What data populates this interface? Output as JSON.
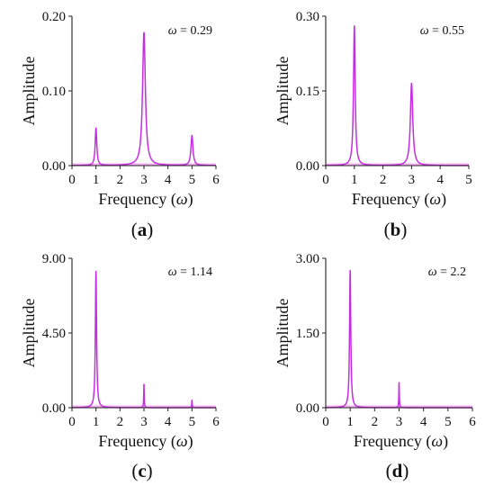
{
  "chart_data": [
    {
      "type": "line",
      "panel": "a",
      "letter": "a",
      "annotation": "= 0.29",
      "xlabel": "Frequency",
      "ylabel": "Amplitude",
      "xlim": [
        0,
        6
      ],
      "ylim": [
        0,
        0.2
      ],
      "xticks": [
        "0",
        "1",
        "2",
        "3",
        "4",
        "5",
        "6"
      ],
      "yticks": [
        "0.00",
        "0.10",
        "0.20"
      ],
      "peaks": [
        {
          "x": 1.0,
          "y": 0.05,
          "width": 0.04
        },
        {
          "x": 3.0,
          "y": 0.178,
          "width": 0.07
        },
        {
          "x": 5.0,
          "y": 0.04,
          "width": 0.05
        }
      ],
      "grid": false,
      "color": "#c52ee0"
    },
    {
      "type": "line",
      "panel": "b",
      "letter": "b",
      "annotation": "= 0.55",
      "xlabel": "Frequency",
      "ylabel": "Amplitude",
      "xlim": [
        0,
        5
      ],
      "ylim": [
        0,
        0.3
      ],
      "xticks": [
        "0",
        "1",
        "2",
        "3",
        "4",
        "5"
      ],
      "yticks": [
        "0.00",
        "0.15",
        "0.30"
      ],
      "peaks": [
        {
          "x": 1.0,
          "y": 0.28,
          "width": 0.035
        },
        {
          "x": 3.0,
          "y": 0.165,
          "width": 0.05
        }
      ],
      "grid": false,
      "color": "#c52ee0"
    },
    {
      "type": "line",
      "panel": "c",
      "letter": "c",
      "annotation": "= 1.14",
      "xlabel": "Frequency",
      "ylabel": "Amplitude",
      "xlim": [
        0,
        6
      ],
      "ylim": [
        0,
        9.0
      ],
      "xticks": [
        "0",
        "1",
        "2",
        "3",
        "4",
        "5",
        "6"
      ],
      "yticks": [
        "0.00",
        "4.50",
        "9.00"
      ],
      "peaks": [
        {
          "x": 1.0,
          "y": 8.2,
          "width": 0.03
        },
        {
          "x": 3.0,
          "y": 1.4,
          "width": 0.012
        },
        {
          "x": 5.0,
          "y": 0.45,
          "width": 0.012
        }
      ],
      "grid": false,
      "color": "#c52ee0"
    },
    {
      "type": "line",
      "panel": "d",
      "letter": "d",
      "annotation": "= 2.2",
      "xlabel": "Frequency",
      "ylabel": "Amplitude",
      "xlim": [
        0,
        6
      ],
      "ylim": [
        0,
        3.0
      ],
      "xticks": [
        "0",
        "1",
        "2",
        "3",
        "4",
        "5",
        "6"
      ],
      "yticks": [
        "0.00",
        "1.50",
        "3.00"
      ],
      "peaks": [
        {
          "x": 1.0,
          "y": 2.75,
          "width": 0.03
        },
        {
          "x": 3.0,
          "y": 0.5,
          "width": 0.012
        }
      ],
      "grid": false,
      "color": "#c52ee0"
    }
  ],
  "omega_symbol": "ω"
}
